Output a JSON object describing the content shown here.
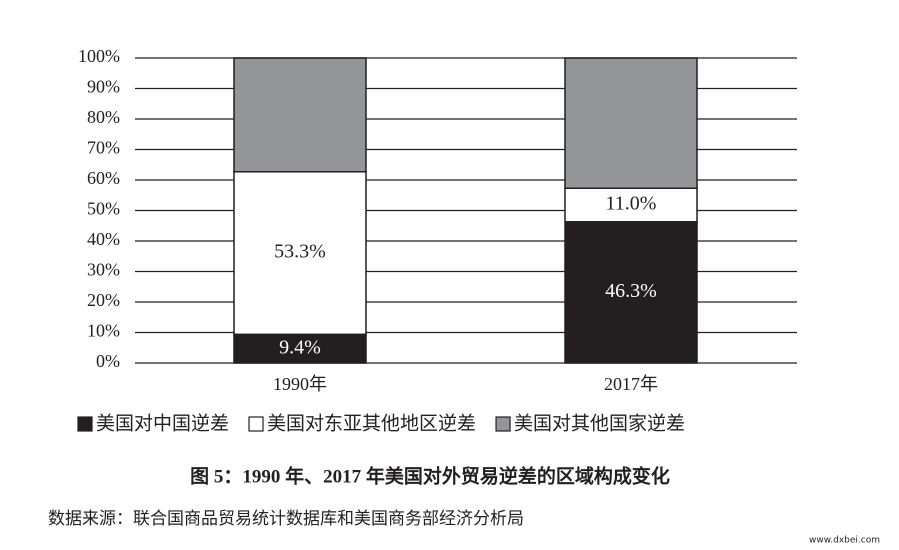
{
  "chart_data": {
    "type": "stacked-bar",
    "categories": [
      "1990年",
      "2017年"
    ],
    "series": [
      {
        "name": "美国对中国逆差",
        "color": "#231f20",
        "values": [
          9.4,
          46.3
        ],
        "value_labels": [
          "9.4%",
          "46.3%"
        ]
      },
      {
        "name": "美国对东亚其他地区逆差",
        "color": "#ffffff",
        "values": [
          53.3,
          11.0
        ],
        "value_labels": [
          "53.3%",
          "11.0%"
        ]
      },
      {
        "name": "美国对其他国家逆差",
        "color": "#939598",
        "values": [
          37.3,
          42.7
        ]
      }
    ],
    "ylim": [
      0,
      100
    ],
    "yticks": [
      {
        "value": 0,
        "label": "0%"
      },
      {
        "value": 10,
        "label": "10%"
      },
      {
        "value": 20,
        "label": "20%"
      },
      {
        "value": 30,
        "label": "30%"
      },
      {
        "value": 40,
        "label": "40%"
      },
      {
        "value": 50,
        "label": "50%"
      },
      {
        "value": 60,
        "label": "60%"
      },
      {
        "value": 70,
        "label": "70%"
      },
      {
        "value": 80,
        "label": "80%"
      },
      {
        "value": 90,
        "label": "90%"
      },
      {
        "value": 100,
        "label": "100%"
      }
    ],
    "grid": true,
    "caption": "图 5：1990 年、2017 年美国对外贸易逆差的区域构成变化",
    "source": "数据来源：联合国商品贸易统计数据库和美国商务部经济分析局",
    "watermark": "www.dxbei.com"
  }
}
